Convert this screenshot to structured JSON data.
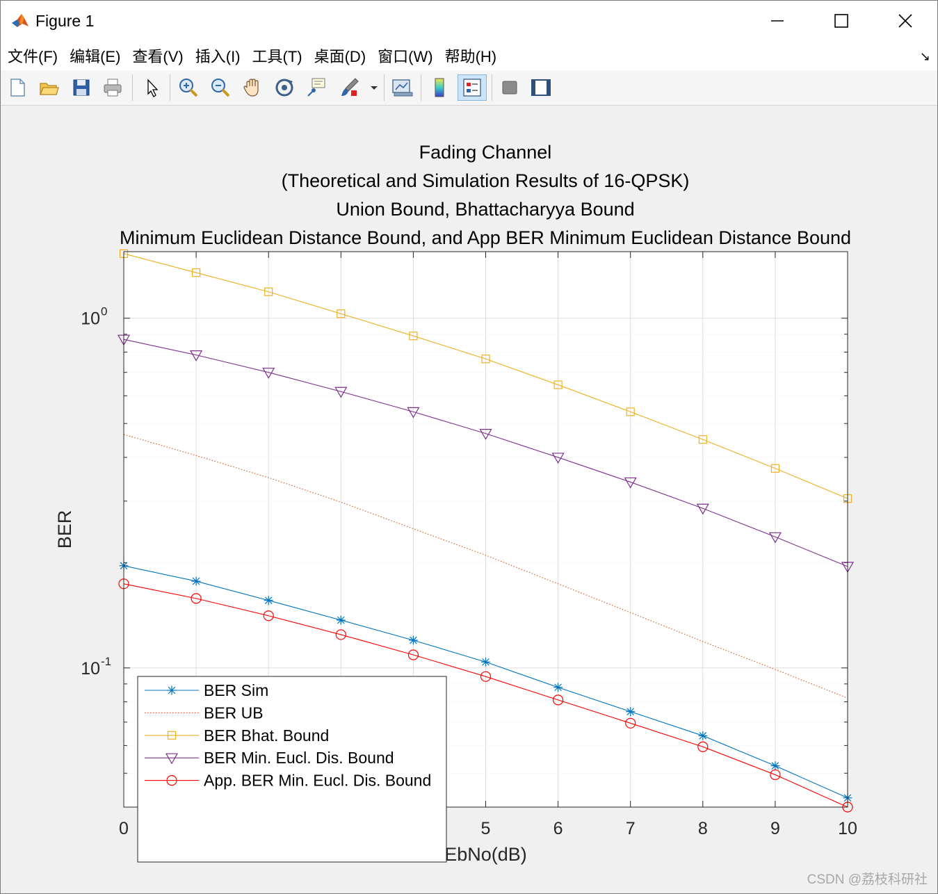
{
  "window": {
    "title": "Figure 1"
  },
  "menu": {
    "items": [
      "文件(F)",
      "编辑(E)",
      "查看(V)",
      "插入(I)",
      "工具(T)",
      "桌面(D)",
      "窗口(W)",
      "帮助(H)"
    ]
  },
  "toolbar": {
    "tools": [
      "new-figure",
      "open-file",
      "save",
      "print",
      "edit-plot",
      "zoom-in",
      "zoom-out",
      "pan",
      "rotate-3d",
      "data-cursor",
      "brush",
      "link-plot",
      "colorbar",
      "legend",
      "hide-plot-tools",
      "show-plot-tools"
    ]
  },
  "watermark": "CSDN @荔枝科研社",
  "chart_data": {
    "type": "line",
    "title": [
      "Fading Channel",
      "(Theoretical and Simulation Results of 16-QPSK)",
      "Union Bound, Bhattacharyya Bound",
      "Minimum Euclidean Distance Bound, and App BER Minimum Euclidean Distance Bound"
    ],
    "xlabel": "EbNo(dB)",
    "ylabel": "BER",
    "yscale": "log",
    "xlim": [
      0,
      10
    ],
    "ylim": [
      0.04,
      1.55
    ],
    "xticks": [
      0,
      1,
      2,
      3,
      4,
      5,
      6,
      7,
      8,
      9,
      10
    ],
    "yticks": [
      {
        "value": 1,
        "base": "10",
        "exp": "0"
      },
      {
        "value": 0.1,
        "base": "10",
        "exp": "-1"
      }
    ],
    "grid": true,
    "legend_location": "bottom-left",
    "x": [
      0,
      1,
      2,
      3,
      4,
      5,
      6,
      7,
      8,
      9,
      10
    ],
    "series": [
      {
        "name": "BER Sim",
        "color": "#0072BD",
        "marker": "star",
        "line": "solid",
        "values": [
          0.196,
          0.177,
          0.156,
          0.137,
          0.12,
          0.104,
          0.088,
          0.075,
          0.064,
          0.0525,
          0.0425
        ]
      },
      {
        "name": "BER UB",
        "color": "#D95319",
        "marker": "none",
        "line": "dotted",
        "values": [
          0.465,
          0.405,
          0.35,
          0.298,
          0.25,
          0.21,
          0.174,
          0.144,
          0.119,
          0.099,
          0.082
        ]
      },
      {
        "name": "BER Bhat. Bound",
        "color": "#EDB120",
        "marker": "square",
        "line": "solid",
        "values": [
          1.53,
          1.35,
          1.19,
          1.03,
          0.89,
          0.765,
          0.645,
          0.54,
          0.45,
          0.372,
          0.305
        ]
      },
      {
        "name": "BER Min. Eucl. Dis. Bound",
        "color": "#7E2F8E",
        "marker": "triangle-down",
        "line": "solid",
        "values": [
          0.87,
          0.785,
          0.7,
          0.617,
          0.54,
          0.468,
          0.4,
          0.34,
          0.286,
          0.237,
          0.195
        ]
      },
      {
        "name": "App. BER Min. Eucl. Dis. Bound",
        "color": "#FF0000",
        "marker": "circle",
        "line": "solid",
        "values": [
          0.174,
          0.158,
          0.141,
          0.1245,
          0.109,
          0.0945,
          0.081,
          0.0695,
          0.0595,
          0.0495,
          0.04
        ]
      }
    ]
  }
}
